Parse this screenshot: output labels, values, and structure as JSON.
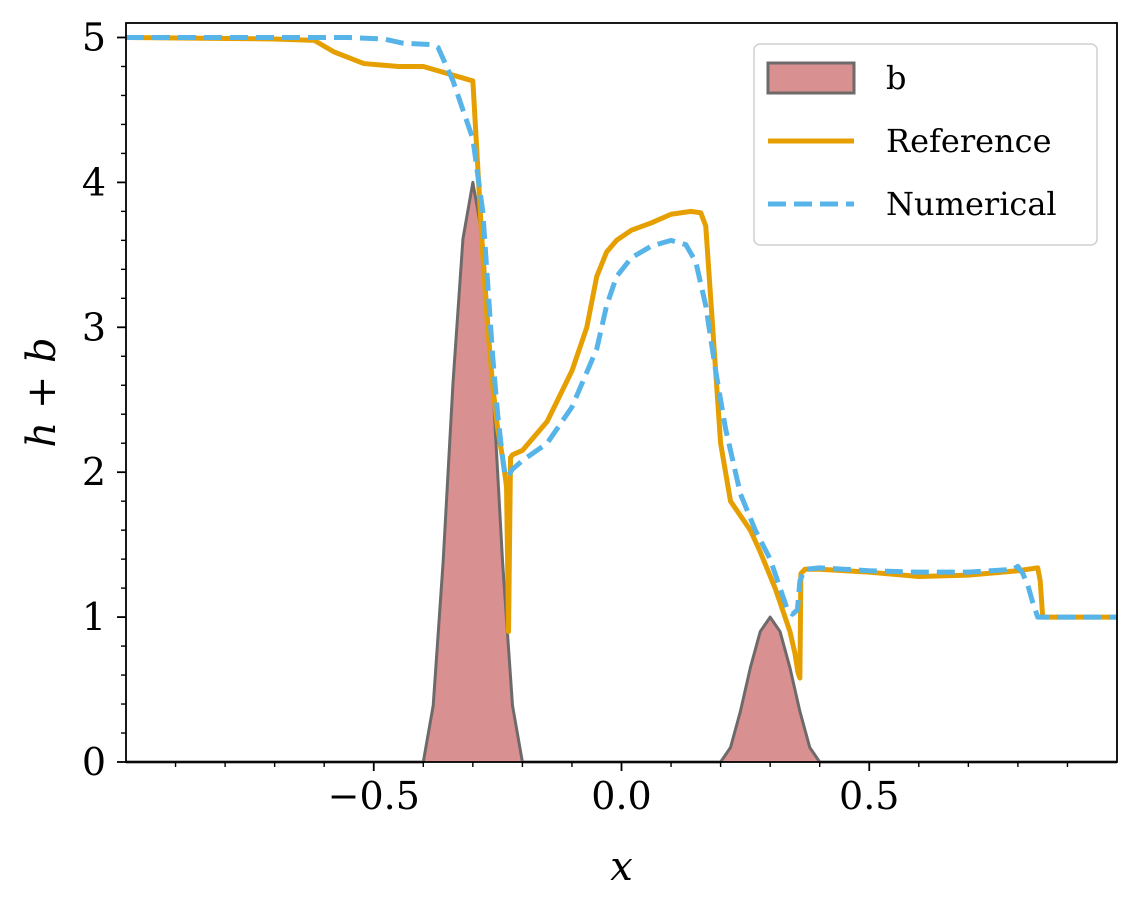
{
  "chart_data": {
    "type": "line",
    "title": "",
    "xlabel": "x",
    "ylabel": "h + b",
    "xlim": [
      -1.0,
      1.0
    ],
    "ylim": [
      0,
      5.1
    ],
    "x_ticks": [
      {
        "value": -0.5,
        "label": "−0.5"
      },
      {
        "value": 0.0,
        "label": "0.0"
      },
      {
        "value": 0.5,
        "label": "0.5"
      }
    ],
    "y_ticks": [
      {
        "value": 0,
        "label": "0"
      },
      {
        "value": 1,
        "label": "1"
      },
      {
        "value": 2,
        "label": "2"
      },
      {
        "value": 3,
        "label": "3"
      },
      {
        "value": 4,
        "label": "4"
      },
      {
        "value": 5,
        "label": "5"
      }
    ],
    "x_minor_step": 0.1,
    "y_minor_step": 0.2,
    "legend_position": "top-right",
    "grid": false,
    "series": [
      {
        "name": "b",
        "kind": "area",
        "color": "#d99090",
        "edge_color": "#6e6a6a",
        "x": [
          -1.0,
          -0.4,
          -0.38,
          -0.36,
          -0.34,
          -0.32,
          -0.3,
          -0.28,
          -0.26,
          -0.24,
          -0.22,
          -0.2,
          0.2,
          0.22,
          0.24,
          0.26,
          0.28,
          0.3,
          0.32,
          0.34,
          0.36,
          0.38,
          0.4,
          1.0
        ],
        "y": [
          0,
          0,
          0.39,
          1.38,
          2.62,
          3.61,
          4.0,
          3.61,
          2.62,
          1.38,
          0.39,
          0,
          0,
          0.1,
          0.35,
          0.65,
          0.9,
          1.0,
          0.9,
          0.65,
          0.35,
          0.1,
          0,
          0
        ]
      },
      {
        "name": "Reference",
        "kind": "line",
        "color": "#e69f00",
        "dash": "solid",
        "x": [
          -1.0,
          -0.7,
          -0.62,
          -0.58,
          -0.52,
          -0.45,
          -0.4,
          -0.3,
          -0.29,
          -0.28,
          -0.27,
          -0.26,
          -0.25,
          -0.24,
          -0.232,
          -0.228,
          -0.224,
          -0.22,
          -0.2,
          -0.15,
          -0.1,
          -0.07,
          -0.05,
          -0.03,
          -0.01,
          0.02,
          0.06,
          0.1,
          0.14,
          0.16,
          0.17,
          0.18,
          0.2,
          0.22,
          0.24,
          0.26,
          0.28,
          0.31,
          0.34,
          0.35,
          0.356,
          0.36,
          0.362,
          0.37,
          0.4,
          0.5,
          0.6,
          0.7,
          0.8,
          0.84,
          0.845,
          0.85,
          0.9,
          1.0
        ],
        "y": [
          5.0,
          4.99,
          4.98,
          4.9,
          4.82,
          4.8,
          4.8,
          4.7,
          4.1,
          3.5,
          3.0,
          2.6,
          2.3,
          2.1,
          1.9,
          0.9,
          2.1,
          2.12,
          2.15,
          2.35,
          2.7,
          3.0,
          3.35,
          3.52,
          3.6,
          3.67,
          3.72,
          3.78,
          3.8,
          3.79,
          3.7,
          3.2,
          2.2,
          1.8,
          1.7,
          1.6,
          1.45,
          1.2,
          0.9,
          0.75,
          0.62,
          0.58,
          1.3,
          1.33,
          1.33,
          1.31,
          1.28,
          1.29,
          1.32,
          1.34,
          1.25,
          1.0,
          1.0,
          1.0
        ]
      },
      {
        "name": "Numerical",
        "kind": "line",
        "color": "#56b4e9",
        "dash": "dashed",
        "x": [
          -1.0,
          -0.55,
          -0.48,
          -0.44,
          -0.38,
          -0.37,
          -0.34,
          -0.3,
          -0.28,
          -0.27,
          -0.26,
          -0.25,
          -0.24,
          -0.235,
          -0.23,
          -0.22,
          -0.2,
          -0.15,
          -0.1,
          -0.05,
          -0.03,
          -0.01,
          0.02,
          0.06,
          0.1,
          0.13,
          0.15,
          0.17,
          0.19,
          0.21,
          0.24,
          0.27,
          0.3,
          0.32,
          0.335,
          0.345,
          0.355,
          0.36,
          0.37,
          0.4,
          0.5,
          0.6,
          0.7,
          0.79,
          0.8,
          0.81,
          0.82,
          0.83,
          0.84,
          0.9,
          1.0
        ],
        "y": [
          5.0,
          5.0,
          4.99,
          4.96,
          4.95,
          4.93,
          4.7,
          4.3,
          3.8,
          3.3,
          2.8,
          2.4,
          2.1,
          1.98,
          1.97,
          2.02,
          2.08,
          2.2,
          2.45,
          2.85,
          3.15,
          3.35,
          3.48,
          3.56,
          3.6,
          3.57,
          3.45,
          3.15,
          2.7,
          2.3,
          1.85,
          1.6,
          1.4,
          1.2,
          1.05,
          1.02,
          1.05,
          1.25,
          1.33,
          1.34,
          1.32,
          1.31,
          1.31,
          1.33,
          1.35,
          1.3,
          1.22,
          1.1,
          1.0,
          1.0,
          1.0
        ]
      }
    ]
  }
}
